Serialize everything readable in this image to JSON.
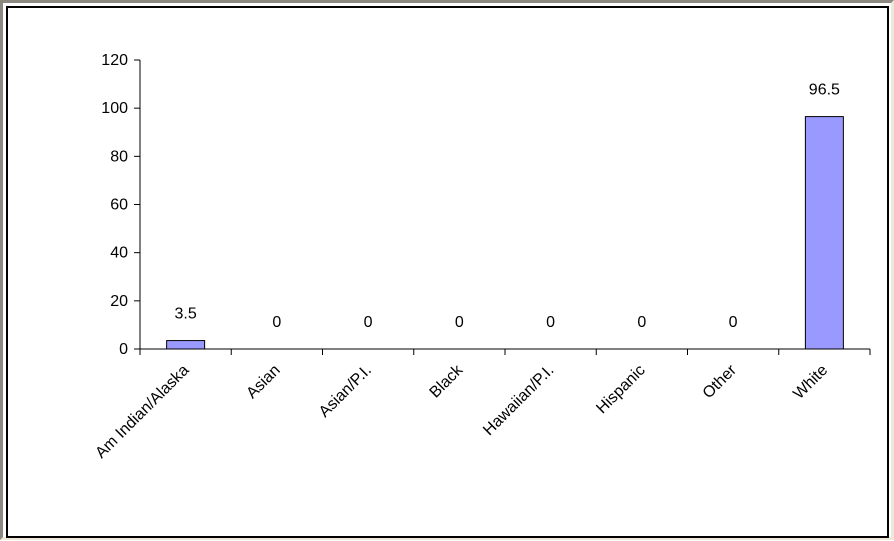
{
  "chart_data": {
    "type": "bar",
    "categories": [
      "Am Indian/Alaska",
      "Asian",
      "Asian/P.I.",
      "Black",
      "Hawaiian/P.I.",
      "Hispanic",
      "Other",
      "White"
    ],
    "values": [
      3.5,
      0,
      0,
      0,
      0,
      0,
      0,
      96.5
    ],
    "data_labels": [
      "3.5",
      "0",
      "0",
      "0",
      "0",
      "0",
      "0",
      "96.5"
    ],
    "yticks": [
      "0",
      "20",
      "40",
      "60",
      "80",
      "100",
      "120"
    ],
    "ylim": [
      0,
      120
    ],
    "title": "",
    "xlabel": "",
    "ylabel": "",
    "legend": "none",
    "grid": false,
    "colors": {
      "bar_fill": "#9999ff",
      "bar_stroke": "#000000",
      "axis": "#000000"
    }
  }
}
